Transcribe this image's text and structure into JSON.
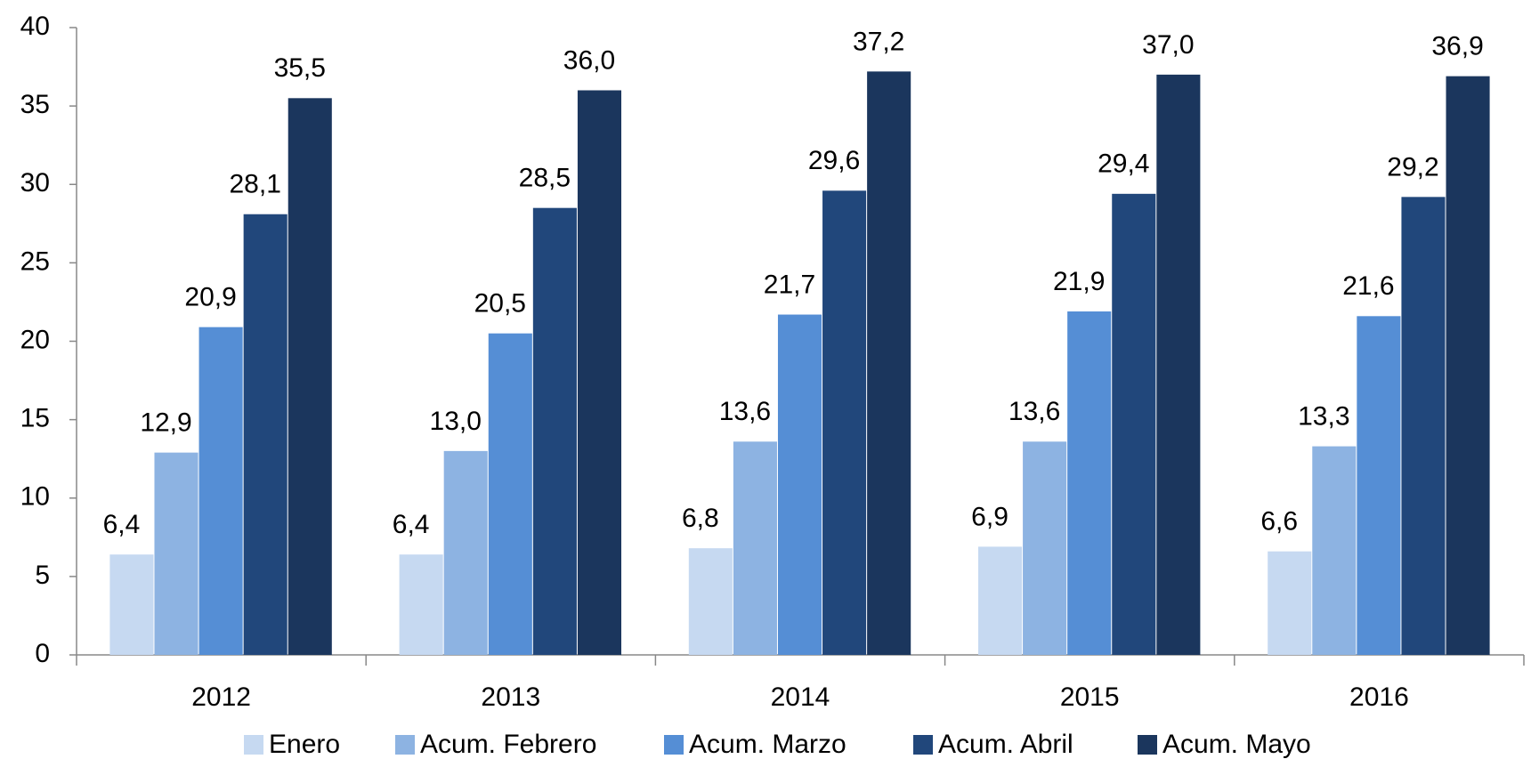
{
  "chart_data": {
    "type": "bar",
    "categories": [
      "2012",
      "2013",
      "2014",
      "2015",
      "2016"
    ],
    "series": [
      {
        "name": "Enero",
        "color": "#c6d9f1",
        "values": [
          6.4,
          6.4,
          6.8,
          6.9,
          6.6
        ],
        "value_labels": [
          "6,4",
          "6,4",
          "6,8",
          "6,9",
          "6,6"
        ]
      },
      {
        "name": "Acum. Febrero",
        "color": "#8db3e2",
        "values": [
          12.9,
          13.0,
          13.6,
          13.6,
          13.3
        ],
        "value_labels": [
          "12,9",
          "13,0",
          "13,6",
          "13,6",
          "13,3"
        ]
      },
      {
        "name": "Acum. Marzo",
        "color": "#558ed5",
        "values": [
          20.9,
          20.5,
          21.7,
          21.9,
          21.6
        ],
        "value_labels": [
          "20,9",
          "20,5",
          "21,7",
          "21,9",
          "21,6"
        ]
      },
      {
        "name": "Acum. Abril",
        "color": "#21477b",
        "values": [
          28.1,
          28.5,
          29.6,
          29.4,
          29.2
        ],
        "value_labels": [
          "28,1",
          "28,5",
          "29,6",
          "29,4",
          "29,2"
        ]
      },
      {
        "name": "Acum. Mayo",
        "color": "#1b365d",
        "values": [
          35.5,
          36.0,
          37.2,
          37.0,
          36.9
        ],
        "value_labels": [
          "35,5",
          "36,0",
          "37,2",
          "37,0",
          "36,9"
        ]
      }
    ],
    "ylim": [
      0,
      40
    ],
    "yticks": [
      0,
      5,
      10,
      15,
      20,
      25,
      30,
      35,
      40
    ],
    "grid": false,
    "legend": "bottom"
  }
}
